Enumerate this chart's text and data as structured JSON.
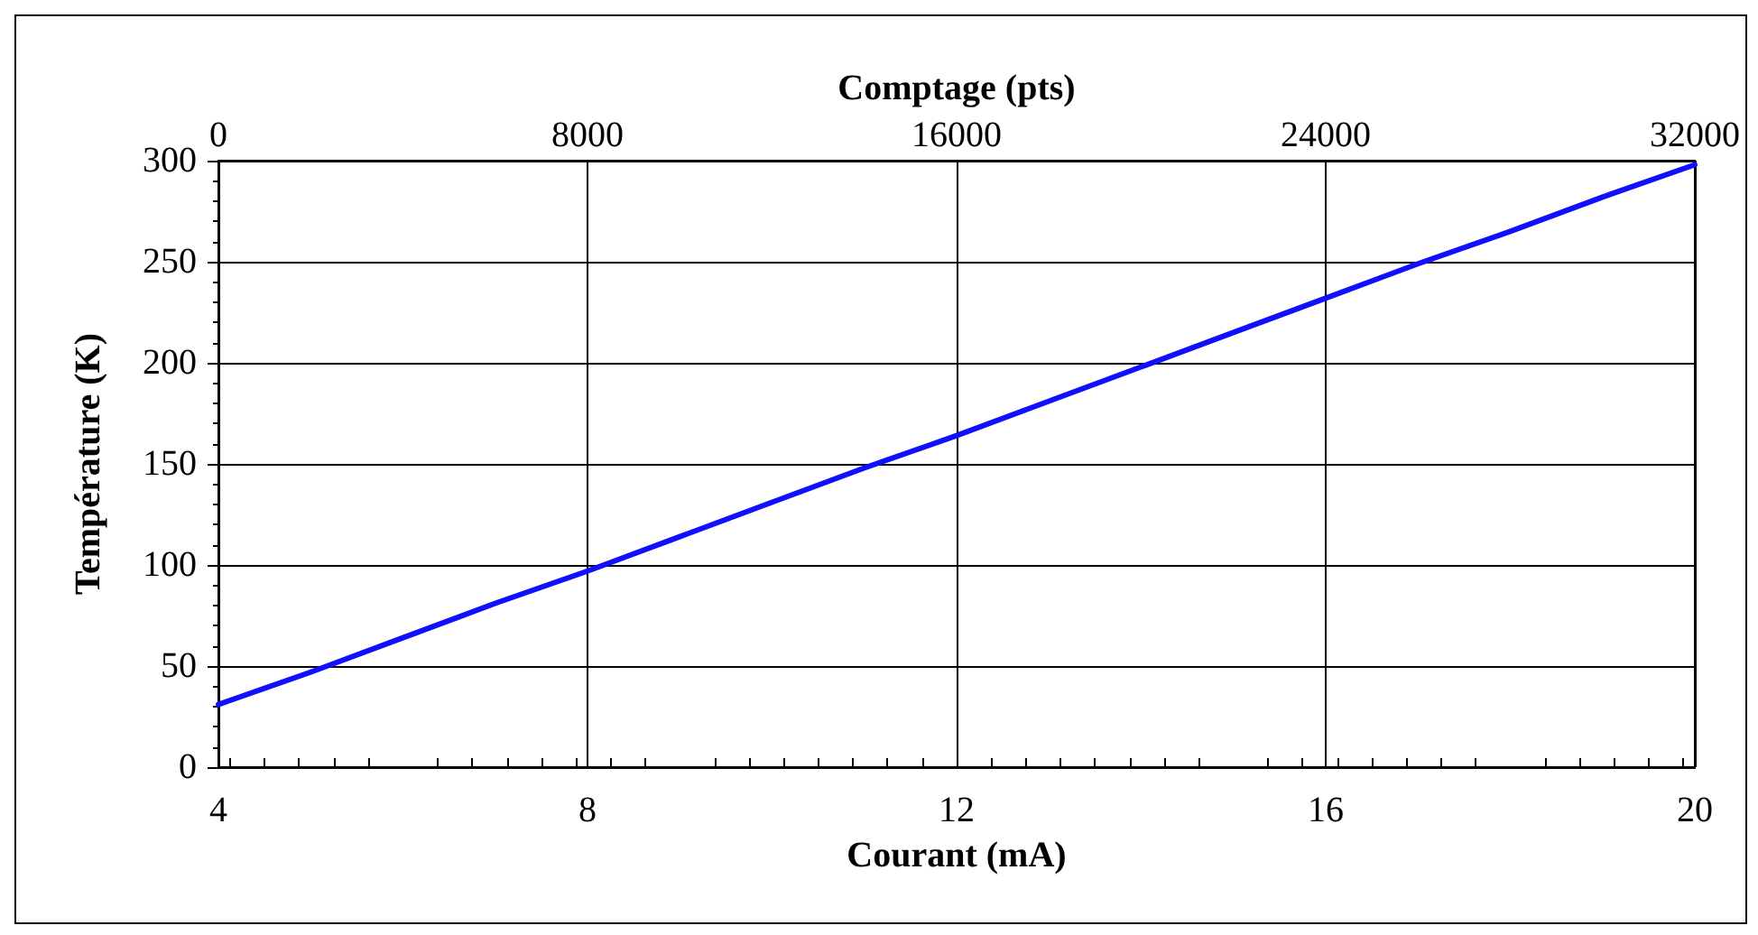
{
  "chart_data": {
    "type": "line",
    "xlabel": "Courant (mA)",
    "ylabel": "Température (K)",
    "x2label": "Comptage (pts)",
    "x": [
      4,
      5,
      6,
      7,
      8,
      9,
      10,
      11,
      12,
      13,
      14,
      15,
      16,
      17,
      18,
      19,
      20
    ],
    "series": [
      {
        "color": "#1010ff",
        "values": [
          31,
          47,
          64,
          81,
          97,
          114,
          131,
          148,
          164,
          181,
          198,
          215,
          232,
          249,
          265,
          282,
          298
        ]
      }
    ],
    "xlim": [
      4,
      20
    ],
    "xticks": [
      4,
      8,
      12,
      16,
      20
    ],
    "x2lim": [
      0,
      32000
    ],
    "x2ticks": [
      0,
      8000,
      16000,
      24000,
      32000
    ],
    "ylim": [
      0,
      300
    ],
    "yticks": [
      0,
      50,
      100,
      150,
      200,
      250,
      300
    ],
    "grid": true,
    "marker": "none",
    "line_style": "solid"
  }
}
